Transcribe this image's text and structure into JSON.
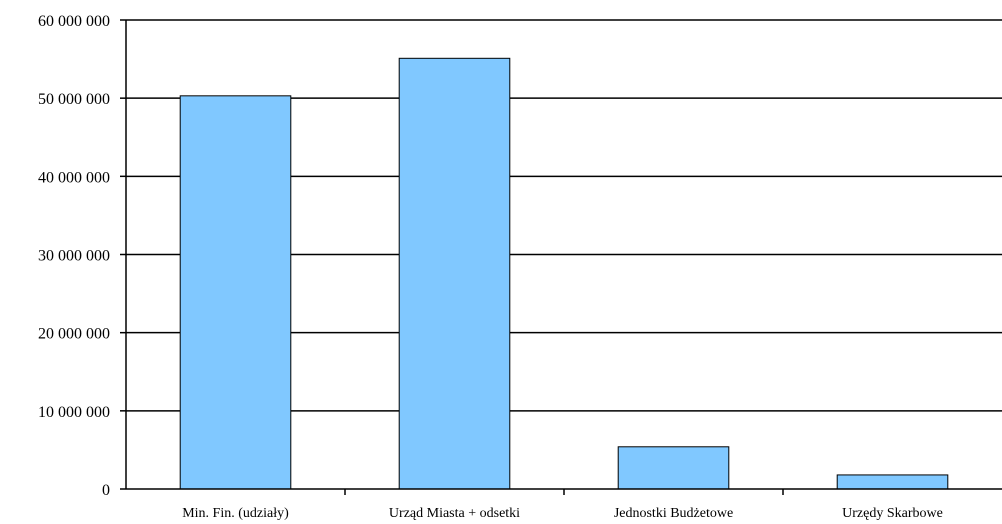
{
  "chart_data": {
    "type": "bar",
    "title": "",
    "xlabel": "",
    "ylabel": "",
    "categories": [
      "Min. Fin. (udziały)",
      "Urząd Miasta + odsetki",
      "Jednostki Budżetowe",
      "Urzędy Skarbowe"
    ],
    "values": [
      50300000,
      55100000,
      5400000,
      1800000
    ],
    "ylim": [
      0,
      60000000
    ],
    "yticks": [
      0,
      10000000,
      20000000,
      30000000,
      40000000,
      50000000,
      60000000
    ],
    "ytick_labels": [
      "0",
      "10 000 000",
      "20 000 000",
      "30 000 000",
      "40 000 000",
      "50 000 000",
      "60 000 000"
    ],
    "grid": true,
    "legend": "none",
    "bar_color": "#80c8ff",
    "bar_edge_color": "#000000"
  }
}
